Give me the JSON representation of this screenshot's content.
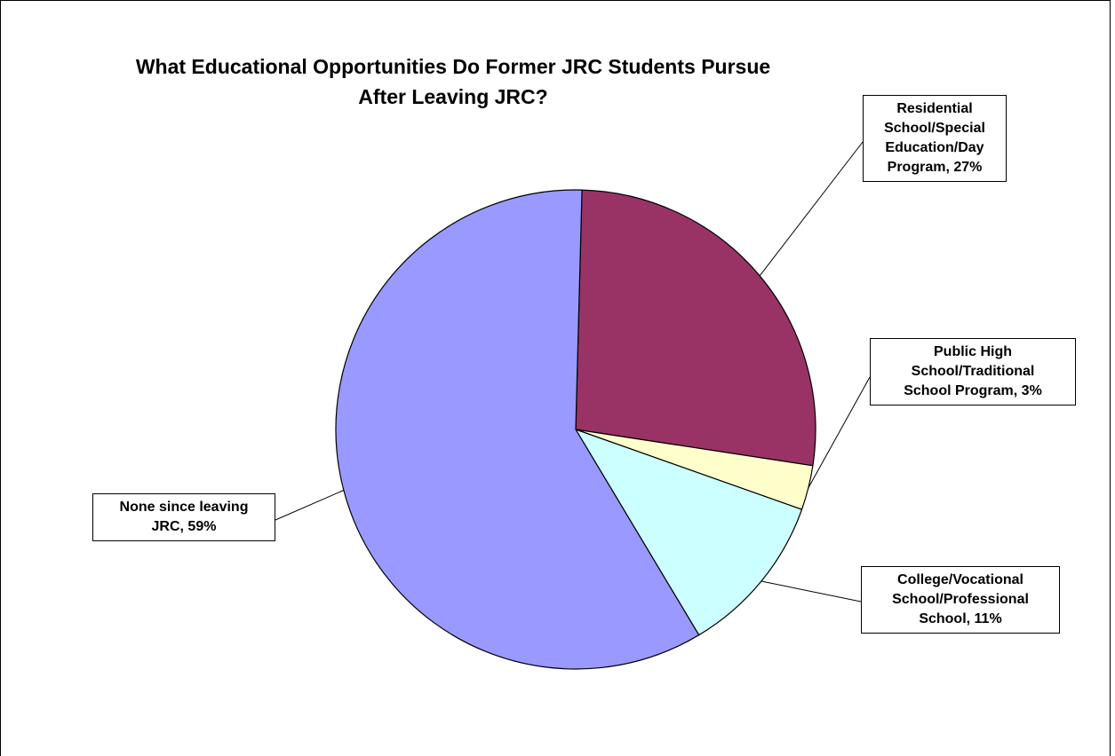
{
  "chart_data": {
    "type": "pie",
    "title_lines": [
      "What Educational Opportunities Do Former JRC Students Pursue",
      "After Leaving JRC?"
    ],
    "slices": [
      {
        "label_lines": [
          "Residential",
          "School/Special",
          "Education/Day",
          "Program, 27%"
        ],
        "value": 27,
        "color": "#993366"
      },
      {
        "label_lines": [
          "Public High",
          "School/Traditional",
          "School Program, 3%"
        ],
        "value": 3,
        "color": "#FFFFCC"
      },
      {
        "label_lines": [
          "College/Vocational",
          "School/Professional",
          "School, 11%"
        ],
        "value": 11,
        "color": "#CCFFFF"
      },
      {
        "label_lines": [
          "None since leaving",
          "JRC, 59%"
        ],
        "value": 59,
        "color": "#9999FF"
      }
    ]
  }
}
